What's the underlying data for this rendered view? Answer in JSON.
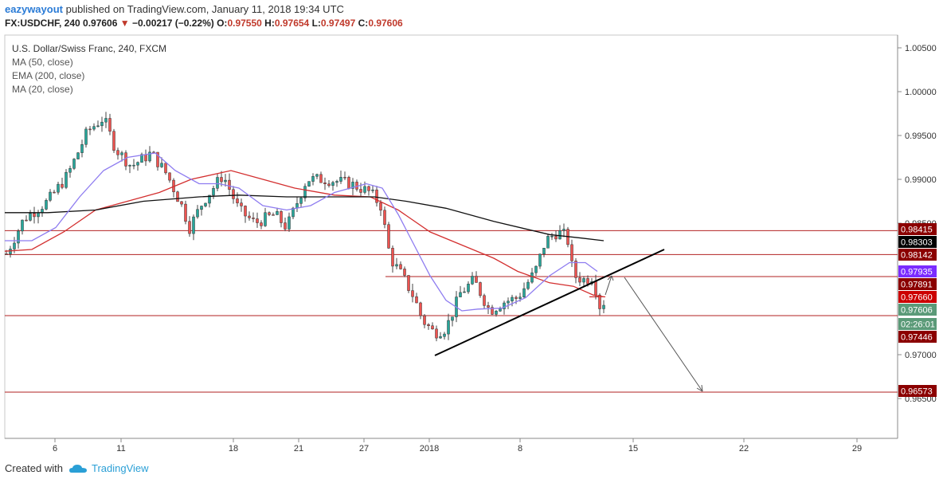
{
  "header": {
    "user": "eazywayout",
    "published": "published on TradingView.com, January 11, 2018 19:34 UTC",
    "symbol": "FX:USDCHF, 240",
    "last": "0.97606",
    "change_arrow": "▼",
    "change": "−0.00217 (−0.22%)",
    "o_label": "O:",
    "o": "0.97550",
    "h_label": "H:",
    "h": "0.97654",
    "l_label": "L:",
    "l": "0.97497",
    "c_label": "C:",
    "c": "0.97606"
  },
  "footer": {
    "created": "Created with",
    "brand": "TradingView"
  },
  "chart_data": {
    "type": "candlestick",
    "title": "U.S. Dollar/Swiss Franc, 240, FXCM",
    "indicators": [
      "MA (50, close)",
      "EMA (200, close)",
      "MA (20, close)"
    ],
    "ylim": [
      0.9615,
      1.0058
    ],
    "y_ticks": [
      "1.00500",
      "1.00000",
      "0.99500",
      "0.99000",
      "0.98500",
      "0.97000",
      "0.96500"
    ],
    "x_ticks": [
      "6",
      "11",
      "18",
      "21",
      "27",
      "2018",
      "8",
      "15",
      "22",
      "29"
    ],
    "price_labels": [
      {
        "value": 0.98415,
        "text": "0.98415",
        "color": "#8b0000"
      },
      {
        "value": 0.98303,
        "text": "0.98303",
        "color": "#000000"
      },
      {
        "value": 0.98142,
        "text": "0.98142",
        "color": "#8b0000"
      },
      {
        "value": 0.97935,
        "text": "0.97935",
        "color": "#7b2cff"
      },
      {
        "value": 0.97891,
        "text": "0.97891",
        "color": "#8b0000"
      },
      {
        "value": 0.9766,
        "text": "0.97660",
        "color": "#cc0000"
      },
      {
        "value": 0.97606,
        "text": "0.97606",
        "color": "#5b9a78"
      },
      {
        "value": 0.97446,
        "text": "0.97446",
        "color": "#8b0000"
      },
      {
        "value": 0.96573,
        "text": "0.96573",
        "color": "#8b0000"
      }
    ],
    "countdown": "02:26:01",
    "horizontal_levels": [
      0.98415,
      0.98142,
      0.97891,
      0.97446,
      0.96573
    ],
    "colors": {
      "up": "#26a69a",
      "down": "#ef5350",
      "ma50": "#d32f2f",
      "ema200": "#111111",
      "ma20": "#8e7cf0",
      "levels": "#b22222"
    }
  }
}
